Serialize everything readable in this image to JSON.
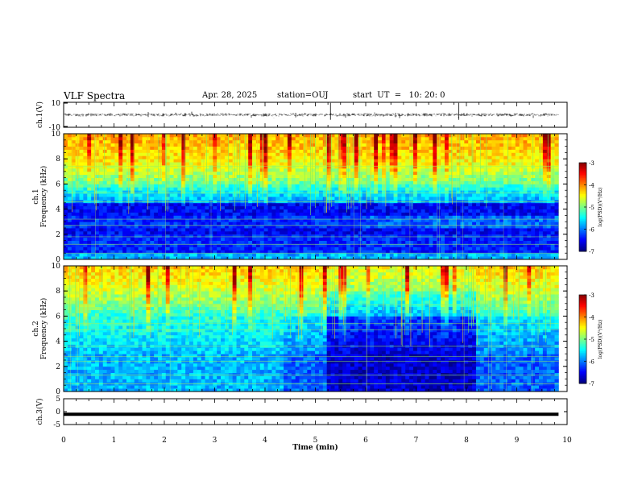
{
  "header": {
    "title": "VLF Spectra",
    "date": "Apr. 28, 2025",
    "station": "station=OUJ",
    "start": "start  UT  =   10: 20: 0"
  },
  "chart_data": [
    {
      "type": "line",
      "title": "VLF Spectra",
      "ylabel": "ch.1(V)",
      "xlim": [
        0,
        10
      ],
      "ylim": [
        -10,
        10
      ],
      "y_ticks": [
        "10",
        "-10"
      ],
      "series": [
        {
          "values": [
            -1,
            1
          ]
        }
      ]
    },
    {
      "type": "heatmap",
      "ylabel_lines": [
        "ch.1",
        "Frequency (kHz)"
      ],
      "xlim": [
        0,
        10
      ],
      "ylim": [
        0,
        10
      ],
      "y_ticks": [
        "0",
        "2",
        "4",
        "6",
        "8",
        "10"
      ],
      "data_extent_min": [
        0,
        9.83
      ],
      "colorbar": {
        "label": "log(PSD)(V²/Hz)",
        "range": [
          -7,
          -3
        ],
        "ticks": [
          "-3",
          "-4",
          "-5",
          "-6",
          "-7"
        ]
      }
    },
    {
      "type": "heatmap",
      "ylabel_lines": [
        "ch.2",
        "Frequency (kHz)"
      ],
      "xlim": [
        0,
        10
      ],
      "ylim": [
        0,
        10
      ],
      "y_ticks": [
        "0",
        "2",
        "4",
        "6",
        "8",
        "10"
      ],
      "data_extent_min": [
        0,
        9.83
      ],
      "colorbar": {
        "label": "log(PSD)(V²/Hz)",
        "range": [
          -7,
          -3
        ],
        "ticks": [
          "-3",
          "-4",
          "-5",
          "-6",
          "-7"
        ]
      }
    },
    {
      "type": "line",
      "ylabel": "ch.3(V)",
      "xlim": [
        0,
        10
      ],
      "ylim": [
        -5,
        5
      ],
      "y_ticks": [
        "5",
        "0",
        "-5"
      ],
      "series": [
        {
          "values": [
            -1,
            -1
          ]
        }
      ]
    }
  ],
  "xaxis": {
    "label": "Time (min)",
    "ticks": [
      "0",
      "1",
      "2",
      "3",
      "4",
      "5",
      "6",
      "7",
      "8",
      "9",
      "10"
    ]
  }
}
